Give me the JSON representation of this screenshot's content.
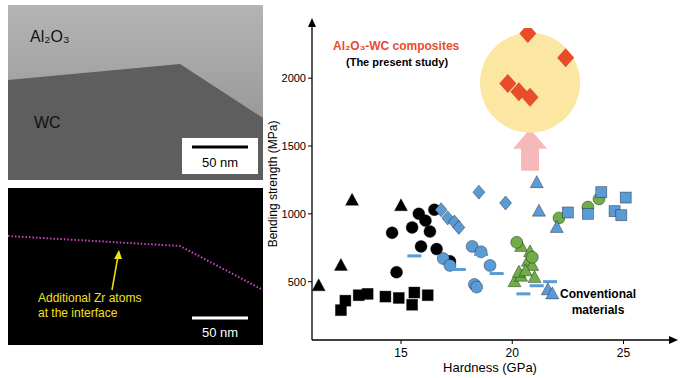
{
  "images": [
    {
      "labels": [
        "Al₂O₃",
        "WC"
      ],
      "scale_bar": "50 nm"
    },
    {
      "annotation": [
        "Additional Zr atoms",
        "at the interface"
      ],
      "scale_bar": "50 nm"
    }
  ],
  "chart_data": {
    "type": "scatter",
    "x_label": "Hardness (GPa)",
    "y_label": "Bending strength (MPa)",
    "xlim": [
      11,
      27
    ],
    "ylim": [
      70,
      2370
    ],
    "xticks": [
      15,
      20,
      25
    ],
    "yticks": [
      500,
      1000,
      1500,
      2000
    ],
    "grid": false,
    "annotations": [
      {
        "text": [
          "Al₂O₃-WC composites",
          "(The present study)"
        ]
      },
      {
        "text": [
          "Conventional",
          "materials"
        ]
      }
    ],
    "series": [
      {
        "color": "#000000",
        "marker": "triangle",
        "x": [
          11.3,
          12.3,
          12.8,
          15.0
        ],
        "values": [
          470,
          620,
          1100,
          1060
        ]
      },
      {
        "color": "#000000",
        "marker": "square",
        "x": [
          12.3,
          12.5,
          13.1,
          13.5,
          14.3,
          14.9,
          15.5,
          15.6,
          16.2
        ],
        "values": [
          290,
          360,
          400,
          410,
          390,
          380,
          330,
          420,
          400
        ]
      },
      {
        "color": "#000000",
        "marker": "circle",
        "x": [
          14.6,
          14.8,
          15.5,
          15.8,
          16.1,
          16.3,
          16.5,
          15.9,
          16.6,
          17.2
        ],
        "values": [
          860,
          570,
          900,
          1000,
          950,
          870,
          1030,
          760,
          740,
          650
        ]
      },
      {
        "color": "#5b9bd5",
        "marker": "diamond",
        "x": [
          16.8,
          17.1,
          17.4,
          17.6,
          18.5,
          19.7
        ],
        "values": [
          1030,
          970,
          940,
          900,
          1160,
          1080
        ]
      },
      {
        "color": "#5b9bd5",
        "marker": "circle",
        "x": [
          16.9,
          17.2,
          18.2,
          18.6,
          18.3,
          19.0,
          18.4
        ],
        "values": [
          670,
          620,
          760,
          720,
          480,
          620,
          460
        ]
      },
      {
        "color": "#5b9bd5",
        "marker": "dash",
        "x": [
          15.6,
          17.6,
          18.6,
          19.3,
          20.5,
          21.1,
          21.7
        ],
        "values": [
          690,
          590,
          700,
          560,
          410,
          470,
          500
        ]
      },
      {
        "color": "#70ad47",
        "marker": "triangle",
        "x": [
          20.1,
          20.4,
          20.3,
          20.7,
          20.4,
          20.8,
          20.9,
          20.6,
          21.0
        ],
        "values": [
          500,
          540,
          570,
          650,
          760,
          720,
          620,
          580,
          530
        ]
      },
      {
        "color": "#70ad47",
        "marker": "circle",
        "x": [
          20.2,
          20.9,
          22.1,
          23.4,
          23.9
        ],
        "values": [
          790,
          680,
          970,
          1050,
          1110
        ]
      },
      {
        "color": "#5b9bd5",
        "marker": "triangle",
        "x": [
          21.1,
          21.2,
          21.6,
          21.8,
          22.0
        ],
        "values": [
          1230,
          1020,
          440,
          410,
          900
        ]
      },
      {
        "color": "#5b9bd5",
        "marker": "square",
        "x": [
          22.5,
          23.4,
          24.0,
          24.6,
          24.9,
          25.1
        ],
        "values": [
          1010,
          1000,
          1160,
          1020,
          990,
          1120
        ]
      },
      {
        "color": "#e84c2b",
        "marker": "diamond",
        "x": [
          20.7,
          22.4,
          19.8,
          20.3,
          20.8
        ],
        "values": [
          2330,
          2150,
          1960,
          1900,
          1860
        ]
      }
    ]
  }
}
